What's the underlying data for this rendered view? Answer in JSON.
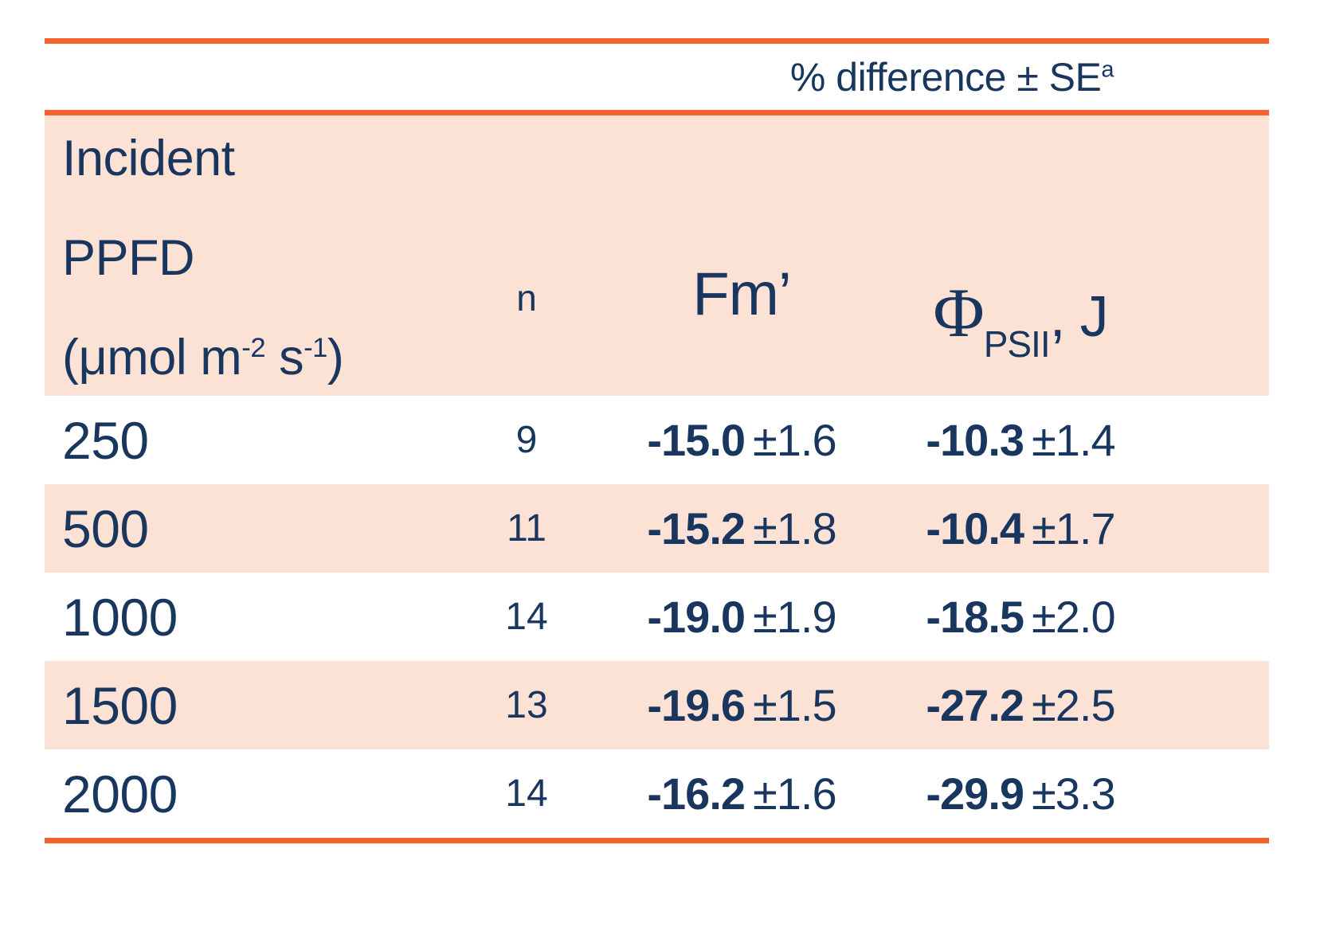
{
  "header": {
    "diff_label": "% difference ± SE",
    "diff_sup": "a"
  },
  "col_headers": {
    "incident_line1": "Incident",
    "incident_line2": "PPFD",
    "unit_prefix": "(μmol m",
    "unit_sup1": "-2",
    "unit_mid": " s",
    "unit_sup2": "-1",
    "unit_suffix": ")",
    "n": "n",
    "fm": "Fm’",
    "phi_symbol": "Φ",
    "phi_sub": "PSII",
    "phi_suffix": ", J"
  },
  "rows": [
    {
      "ppfd": "250",
      "n": "9",
      "fm_value": "-15.0",
      "fm_se": "±1.6",
      "phi_value": "-10.3",
      "phi_se": "±1.4"
    },
    {
      "ppfd": "500",
      "n": "11",
      "fm_value": "-15.2",
      "fm_se": "±1.8",
      "phi_value": "-10.4",
      "phi_se": "±1.7"
    },
    {
      "ppfd": "1000",
      "n": "14",
      "fm_value": "-19.0",
      "fm_se": "±1.9",
      "phi_value": "-18.5",
      "phi_se": "±2.0"
    },
    {
      "ppfd": "1500",
      "n": "13",
      "fm_value": "-19.6",
      "fm_se": "±1.5",
      "phi_value": "-27.2",
      "phi_se": "±2.5"
    },
    {
      "ppfd": "2000",
      "n": "14",
      "fm_value": "-16.2",
      "fm_se": "±1.6",
      "phi_value": "-29.9",
      "phi_se": "±3.3"
    }
  ],
  "colors": {
    "accent_orange": "#F4632C",
    "row_pink": "#FCE1D5",
    "text_navy": "#19365F"
  },
  "chart_data": {
    "type": "table",
    "title": "% difference ± SEa",
    "x_label": "Incident PPFD (μmol m-2 s-1)",
    "categories": [
      250,
      500,
      1000,
      1500,
      2000
    ],
    "series": [
      {
        "name": "n",
        "values": [
          9,
          11,
          14,
          13,
          14
        ]
      },
      {
        "name": "Fm' % difference",
        "values": [
          -15.0,
          -15.2,
          -19.0,
          -19.6,
          -16.2
        ],
        "se": [
          1.6,
          1.8,
          1.9,
          1.5,
          1.6
        ]
      },
      {
        "name": "PhiPSII, J % difference",
        "values": [
          -10.3,
          -10.4,
          -18.5,
          -27.2,
          -29.9
        ],
        "se": [
          1.4,
          1.7,
          2.0,
          2.5,
          3.3
        ]
      }
    ],
    "layout": {
      "grid": false,
      "legend": "none",
      "alternating_row_shading": true
    }
  }
}
